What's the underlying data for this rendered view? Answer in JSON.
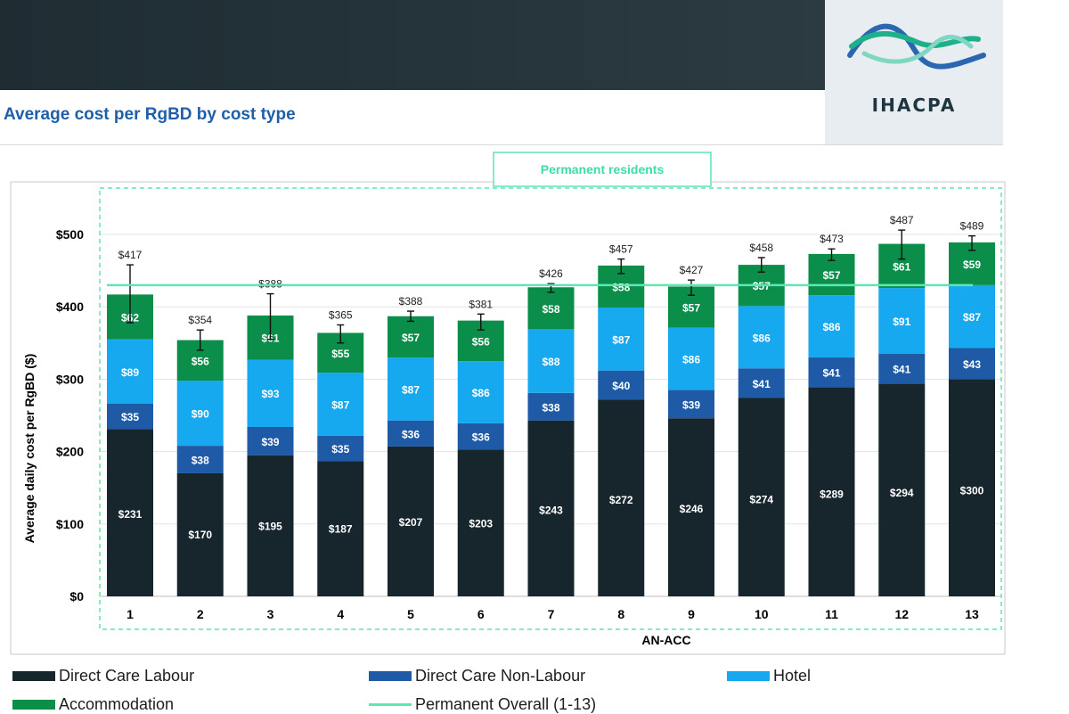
{
  "slide": {
    "title": "Average cost per RgBD by cost type",
    "logo_text": "IHACPA"
  },
  "colors": {
    "direct_care_labour": "#16262c",
    "direct_care_non_labour": "#1e5aa6",
    "hotel": "#17a9f0",
    "accommodation": "#0a8e4a",
    "permanent_overall": "#5ee6b4",
    "header_band": "#23333a",
    "title": "#1f5fa8"
  },
  "chart_data": {
    "type": "bar",
    "stacked": true,
    "panel_label": "Permanent residents",
    "xlabel": "AN-ACC",
    "ylabel": "Average daily cost per RgBD ($)",
    "ylim": [
      0,
      500
    ],
    "yticks": [
      0,
      100,
      200,
      300,
      400,
      500
    ],
    "ytick_labels": [
      "$0",
      "$100",
      "$200",
      "$300",
      "$400",
      "$500"
    ],
    "grid": true,
    "legend_position": "bottom",
    "categories": [
      "1",
      "2",
      "3",
      "4",
      "5",
      "6",
      "7",
      "8",
      "9",
      "10",
      "11",
      "12",
      "13"
    ],
    "series": [
      {
        "name": "Direct Care Labour",
        "values": [
          231,
          170,
          195,
          187,
          207,
          203,
          243,
          272,
          246,
          274,
          289,
          294,
          300
        ],
        "labels": [
          "$231",
          "$170",
          "$195",
          "$187",
          "$207",
          "$203",
          "$243",
          "$272",
          "$246",
          "$274",
          "$289",
          "$294",
          "$300"
        ]
      },
      {
        "name": "Direct Care Non-Labour",
        "values": [
          35,
          38,
          39,
          35,
          36,
          36,
          38,
          40,
          39,
          41,
          41,
          41,
          43
        ],
        "labels": [
          "$35",
          "$38",
          "$39",
          "$35",
          "$36",
          "$36",
          "$38",
          "$40",
          "$39",
          "$41",
          "$41",
          "$41",
          "$43"
        ]
      },
      {
        "name": "Hotel",
        "values": [
          89,
          90,
          93,
          87,
          87,
          86,
          88,
          87,
          86,
          86,
          86,
          91,
          87
        ],
        "labels": [
          "$89",
          "$90",
          "$93",
          "$87",
          "$87",
          "$86",
          "$88",
          "$87",
          "$86",
          "$86",
          "$86",
          "$91",
          "$87"
        ]
      },
      {
        "name": "Accommodation",
        "values": [
          62,
          56,
          61,
          55,
          57,
          56,
          58,
          58,
          57,
          57,
          57,
          61,
          59
        ],
        "labels": [
          "$62",
          "$56",
          "$61",
          "$55",
          "$57",
          "$56",
          "$58",
          "$58",
          "$57",
          "$57",
          "$57",
          "$61",
          "$59"
        ]
      }
    ],
    "totals": [
      417,
      354,
      388,
      365,
      388,
      381,
      426,
      457,
      427,
      458,
      473,
      487,
      489
    ],
    "total_labels": [
      "$417",
      "$354",
      "$388",
      "$365",
      "$388",
      "$381",
      "$426",
      "$457",
      "$427",
      "$458",
      "$473",
      "$487",
      "$489"
    ],
    "error_bars": {
      "low": [
        378,
        340,
        355,
        350,
        380,
        368,
        420,
        446,
        416,
        448,
        464,
        466,
        478
      ],
      "high": [
        458,
        368,
        418,
        375,
        394,
        390,
        432,
        466,
        437,
        468,
        480,
        506,
        498
      ]
    },
    "reference_line": {
      "name": "Permanent Overall (1-13)",
      "value": 430
    }
  },
  "legend": {
    "items": [
      {
        "name": "Direct Care Labour",
        "kind": "swatch",
        "color_key": "direct_care_labour"
      },
      {
        "name": "Direct Care Non-Labour",
        "kind": "swatch",
        "color_key": "direct_care_non_labour"
      },
      {
        "name": "Hotel",
        "kind": "swatch",
        "color_key": "hotel"
      },
      {
        "name": "Accommodation",
        "kind": "swatch",
        "color_key": "accommodation"
      },
      {
        "name": "Permanent Overall (1-13)",
        "kind": "line",
        "color_key": "permanent_overall"
      }
    ]
  }
}
